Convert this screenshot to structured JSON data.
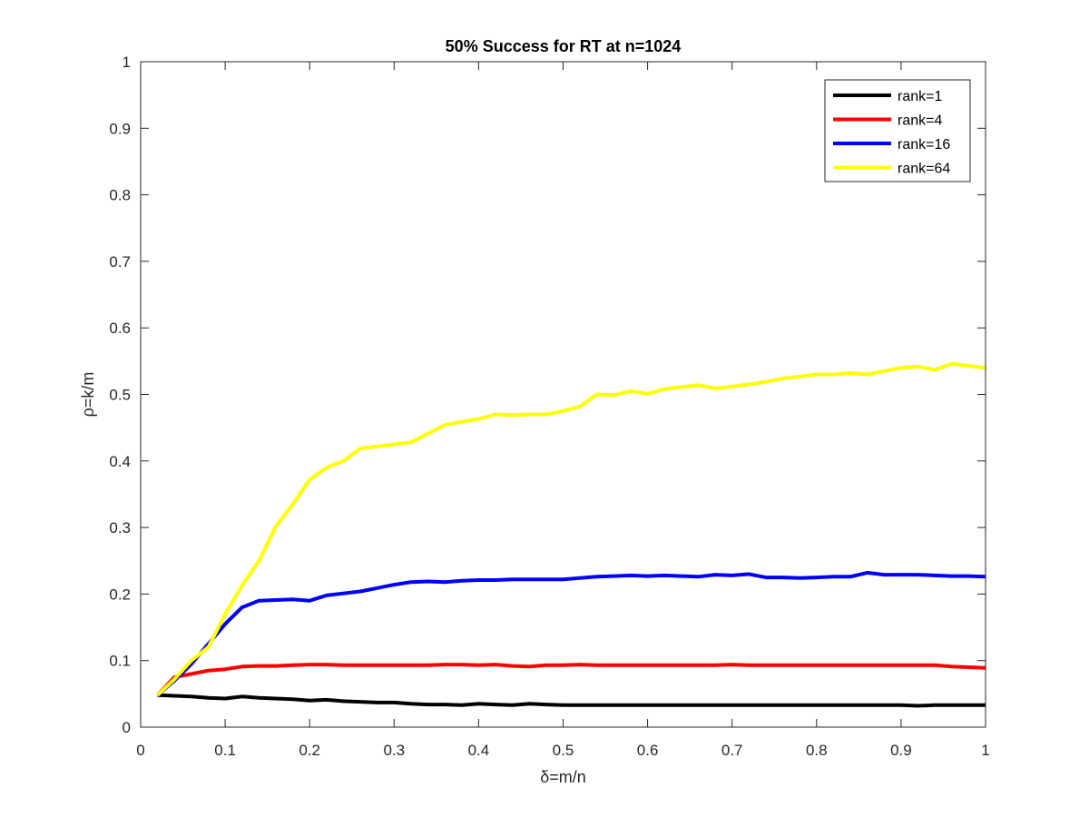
{
  "chart_data": {
    "type": "line",
    "title": "50% Success for RT at n=1024",
    "xlabel": "δ=m/n",
    "ylabel": "ρ=k/m",
    "xlim": [
      0,
      1
    ],
    "ylim": [
      0,
      1
    ],
    "xticks": [
      0,
      0.1,
      0.2,
      0.3,
      0.4,
      0.5,
      0.6,
      0.7,
      0.8,
      0.9,
      1
    ],
    "xtick_labels": [
      "0",
      "0.1",
      "0.2",
      "0.3",
      "0.4",
      "0.5",
      "0.6",
      "0.7",
      "0.8",
      "0.9",
      "1"
    ],
    "yticks": [
      0,
      0.1,
      0.2,
      0.3,
      0.4,
      0.5,
      0.6,
      0.7,
      0.8,
      0.9,
      1
    ],
    "ytick_labels": [
      "0",
      "0.1",
      "0.2",
      "0.3",
      "0.4",
      "0.5",
      "0.6",
      "0.7",
      "0.8",
      "0.9",
      "1"
    ],
    "grid": false,
    "legend_position": "top-right",
    "x": [
      0.02,
      0.04,
      0.06,
      0.08,
      0.1,
      0.12,
      0.14,
      0.16,
      0.18,
      0.2,
      0.22,
      0.24,
      0.26,
      0.28,
      0.3,
      0.32,
      0.34,
      0.36,
      0.38,
      0.4,
      0.42,
      0.44,
      0.46,
      0.48,
      0.5,
      0.52,
      0.54,
      0.56,
      0.58,
      0.6,
      0.62,
      0.64,
      0.66,
      0.68,
      0.7,
      0.72,
      0.74,
      0.76,
      0.78,
      0.8,
      0.82,
      0.84,
      0.86,
      0.88,
      0.9,
      0.92,
      0.94,
      0.96,
      0.98,
      1.0
    ],
    "series": [
      {
        "name": "rank=1",
        "color": "#000000",
        "values": [
          0.048,
          0.047,
          0.046,
          0.044,
          0.043,
          0.046,
          0.044,
          0.043,
          0.042,
          0.04,
          0.041,
          0.039,
          0.038,
          0.037,
          0.037,
          0.035,
          0.034,
          0.034,
          0.033,
          0.035,
          0.034,
          0.033,
          0.035,
          0.034,
          0.033,
          0.033,
          0.033,
          0.033,
          0.033,
          0.033,
          0.033,
          0.033,
          0.033,
          0.033,
          0.033,
          0.033,
          0.033,
          0.033,
          0.033,
          0.033,
          0.033,
          0.033,
          0.033,
          0.033,
          0.033,
          0.032,
          0.033,
          0.033,
          0.033,
          0.033
        ]
      },
      {
        "name": "rank=4",
        "color": "#ff0000",
        "values": [
          0.048,
          0.075,
          0.08,
          0.085,
          0.087,
          0.091,
          0.092,
          0.092,
          0.093,
          0.094,
          0.094,
          0.093,
          0.093,
          0.093,
          0.093,
          0.093,
          0.093,
          0.094,
          0.094,
          0.093,
          0.094,
          0.092,
          0.091,
          0.093,
          0.093,
          0.094,
          0.093,
          0.093,
          0.093,
          0.093,
          0.093,
          0.093,
          0.093,
          0.093,
          0.094,
          0.093,
          0.093,
          0.093,
          0.093,
          0.093,
          0.093,
          0.093,
          0.093,
          0.093,
          0.093,
          0.093,
          0.093,
          0.091,
          0.09,
          0.089
        ]
      },
      {
        "name": "rank=16",
        "color": "#0000ff",
        "values": [
          0.048,
          0.07,
          0.095,
          0.125,
          0.155,
          0.18,
          0.19,
          0.191,
          0.192,
          0.19,
          0.198,
          0.201,
          0.204,
          0.209,
          0.214,
          0.218,
          0.219,
          0.218,
          0.22,
          0.221,
          0.221,
          0.222,
          0.222,
          0.222,
          0.222,
          0.224,
          0.226,
          0.227,
          0.228,
          0.227,
          0.228,
          0.227,
          0.226,
          0.229,
          0.228,
          0.23,
          0.225,
          0.225,
          0.224,
          0.225,
          0.226,
          0.226,
          0.232,
          0.229,
          0.229,
          0.229,
          0.228,
          0.227,
          0.227,
          0.226
        ]
      },
      {
        "name": "rank=64",
        "color": "#ffff00",
        "values": [
          0.048,
          0.072,
          0.1,
          0.12,
          0.17,
          0.213,
          0.25,
          0.302,
          0.335,
          0.372,
          0.39,
          0.4,
          0.419,
          0.422,
          0.425,
          0.428,
          0.441,
          0.454,
          0.459,
          0.463,
          0.47,
          0.469,
          0.47,
          0.47,
          0.475,
          0.482,
          0.5,
          0.499,
          0.505,
          0.501,
          0.508,
          0.511,
          0.514,
          0.509,
          0.512,
          0.515,
          0.519,
          0.524,
          0.527,
          0.53,
          0.53,
          0.532,
          0.53,
          0.535,
          0.54,
          0.542,
          0.537,
          0.546,
          0.543,
          0.54
        ]
      }
    ]
  }
}
